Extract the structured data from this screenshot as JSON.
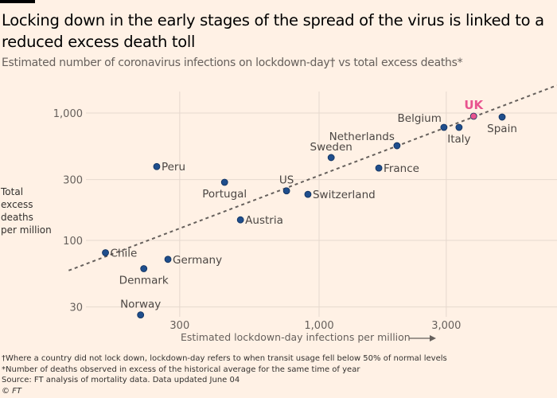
{
  "header": {
    "title": "Locking down in the early stages of the spread of the virus is linked to a reduced excess death toll",
    "subtitle": "Estimated number of coronavirus infections on lockdown-day† vs total excess deaths*"
  },
  "colors": {
    "background": "#fff1e5",
    "point": "#1f4e8c",
    "highlight": "#e8538f",
    "trend": "#66605c",
    "grid": "#e6d9ce"
  },
  "chart_data": {
    "type": "scatter",
    "title": "Locking down in the early stages of the spread of the virus is linked to a reduced excess death toll",
    "subtitle": "Estimated number of coronavirus infections on lockdown-day† vs total excess deaths*",
    "xlabel": "Estimated lockdown-day infections per million",
    "ylabel": "Total excess deaths per million",
    "xscale": "log",
    "yscale": "log",
    "xlim": [
      110,
      8000
    ],
    "ylim": [
      24,
      1500
    ],
    "xticks": [
      300,
      1000,
      3000
    ],
    "xtick_labels": [
      "300",
      "1,000",
      "3,000"
    ],
    "yticks": [
      30,
      100,
      300,
      1000
    ],
    "ytick_labels": [
      "30",
      "100",
      "300",
      "1,000"
    ],
    "grid": true,
    "points": [
      {
        "name": "Chile",
        "x": 158,
        "y": 80,
        "label_pos": "right"
      },
      {
        "name": "Denmark",
        "x": 220,
        "y": 60,
        "label_pos": "below"
      },
      {
        "name": "Norway",
        "x": 214,
        "y": 26,
        "label_pos": "above"
      },
      {
        "name": "Germany",
        "x": 271,
        "y": 71,
        "label_pos": "right"
      },
      {
        "name": "Peru",
        "x": 246,
        "y": 380,
        "label_pos": "right"
      },
      {
        "name": "Portugal",
        "x": 442,
        "y": 286,
        "label_pos": "below"
      },
      {
        "name": "Austria",
        "x": 507,
        "y": 145,
        "label_pos": "right"
      },
      {
        "name": "US",
        "x": 755,
        "y": 245,
        "label_pos": "above"
      },
      {
        "name": "Switzerland",
        "x": 908,
        "y": 230,
        "label_pos": "right"
      },
      {
        "name": "Sweden",
        "x": 1110,
        "y": 447,
        "label_pos": "above"
      },
      {
        "name": "France",
        "x": 1675,
        "y": 370,
        "label_pos": "right"
      },
      {
        "name": "Netherlands",
        "x": 1960,
        "y": 554,
        "label_pos": "above-left"
      },
      {
        "name": "Belgium",
        "x": 2940,
        "y": 772,
        "label_pos": "above-left"
      },
      {
        "name": "Italy",
        "x": 3350,
        "y": 772,
        "label_pos": "below"
      },
      {
        "name": "UK",
        "x": 3800,
        "y": 944,
        "label_pos": "above",
        "highlight": true
      },
      {
        "name": "Spain",
        "x": 4860,
        "y": 930,
        "label_pos": "below"
      }
    ],
    "trendline": {
      "style": "dashed",
      "from": {
        "x": 115,
        "y": 58
      },
      "to": {
        "x": 7800,
        "y": 1650
      }
    }
  },
  "footer": {
    "notes": [
      "†Where a country did not lock down, lockdown-day refers to when transit usage fell below 50% of normal levels",
      "*Number of deaths observed in excess of the historical average for the same time of year",
      "Source: FT analysis of mortality data. Data updated June 04"
    ],
    "copyright": "© FT"
  }
}
